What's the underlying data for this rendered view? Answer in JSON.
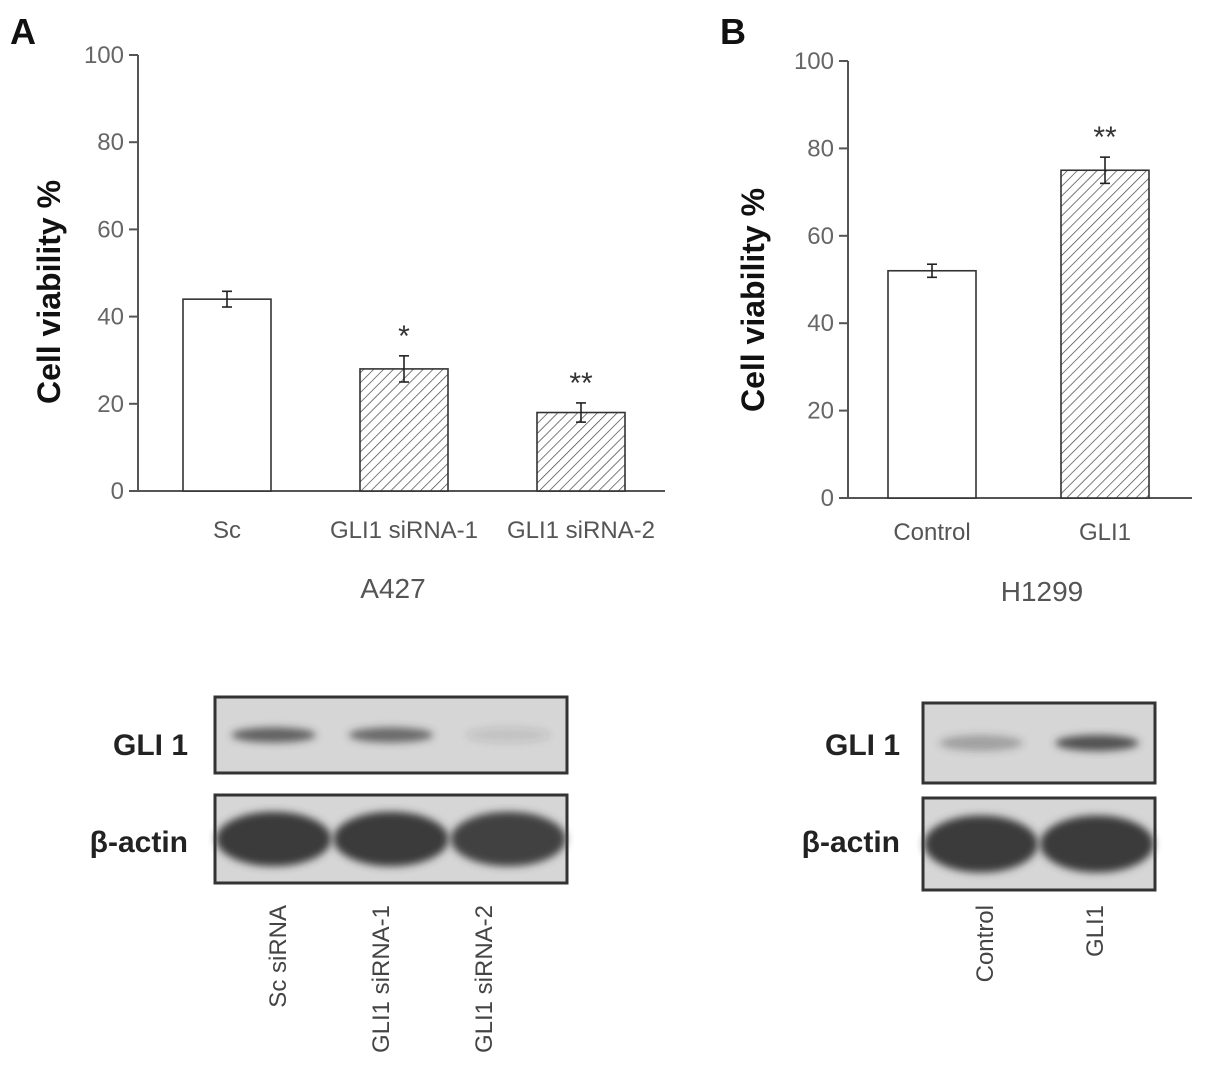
{
  "chart_data": [
    {
      "type": "bar",
      "panel": "A",
      "categories": [
        "Sc",
        "GLI1 siRNA-1",
        "GLI1 siRNA-2"
      ],
      "values": [
        44,
        28,
        18
      ],
      "errors": [
        1.8,
        3.0,
        2.2
      ],
      "patterns": [
        "open",
        "hatched",
        "hatched"
      ],
      "annotations": [
        "",
        "*",
        "**"
      ],
      "xlabel": "A427",
      "ylabel": "Cell viability %",
      "ylim": [
        0,
        100
      ],
      "yticks": [
        0,
        20,
        40,
        60,
        80,
        100
      ],
      "grid": false
    },
    {
      "type": "bar",
      "panel": "B",
      "categories": [
        "Control",
        "GLI1"
      ],
      "values": [
        52,
        75
      ],
      "errors": [
        1.5,
        3.0
      ],
      "patterns": [
        "open",
        "hatched"
      ],
      "annotations": [
        "",
        "**"
      ],
      "xlabel": "H1299",
      "ylabel": "Cell viability %",
      "ylim": [
        0,
        100
      ],
      "yticks": [
        0,
        20,
        40,
        60,
        80,
        100
      ],
      "grid": false
    }
  ],
  "blots": [
    {
      "panel": "A",
      "rows": [
        "GLI 1",
        "β-actin"
      ],
      "lanes": [
        "Sc siRNA",
        "GLI1 siRNA-1",
        "GLI1 siRNA-2"
      ],
      "row_intensity": [
        [
          0.75,
          0.7,
          0.12
        ],
        [
          1.0,
          1.0,
          0.95
        ]
      ]
    },
    {
      "panel": "B",
      "rows": [
        "GLI 1",
        "β-actin"
      ],
      "lanes": [
        "Control",
        "GLI1"
      ],
      "row_intensity": [
        [
          0.35,
          0.85
        ],
        [
          1.0,
          1.0
        ]
      ]
    }
  ],
  "colors": {
    "axis": "#555555",
    "bar_edge": "#333333",
    "hatch": "#444444",
    "blot_bg": "#d4d4d4",
    "band": "#3a3a3a"
  }
}
